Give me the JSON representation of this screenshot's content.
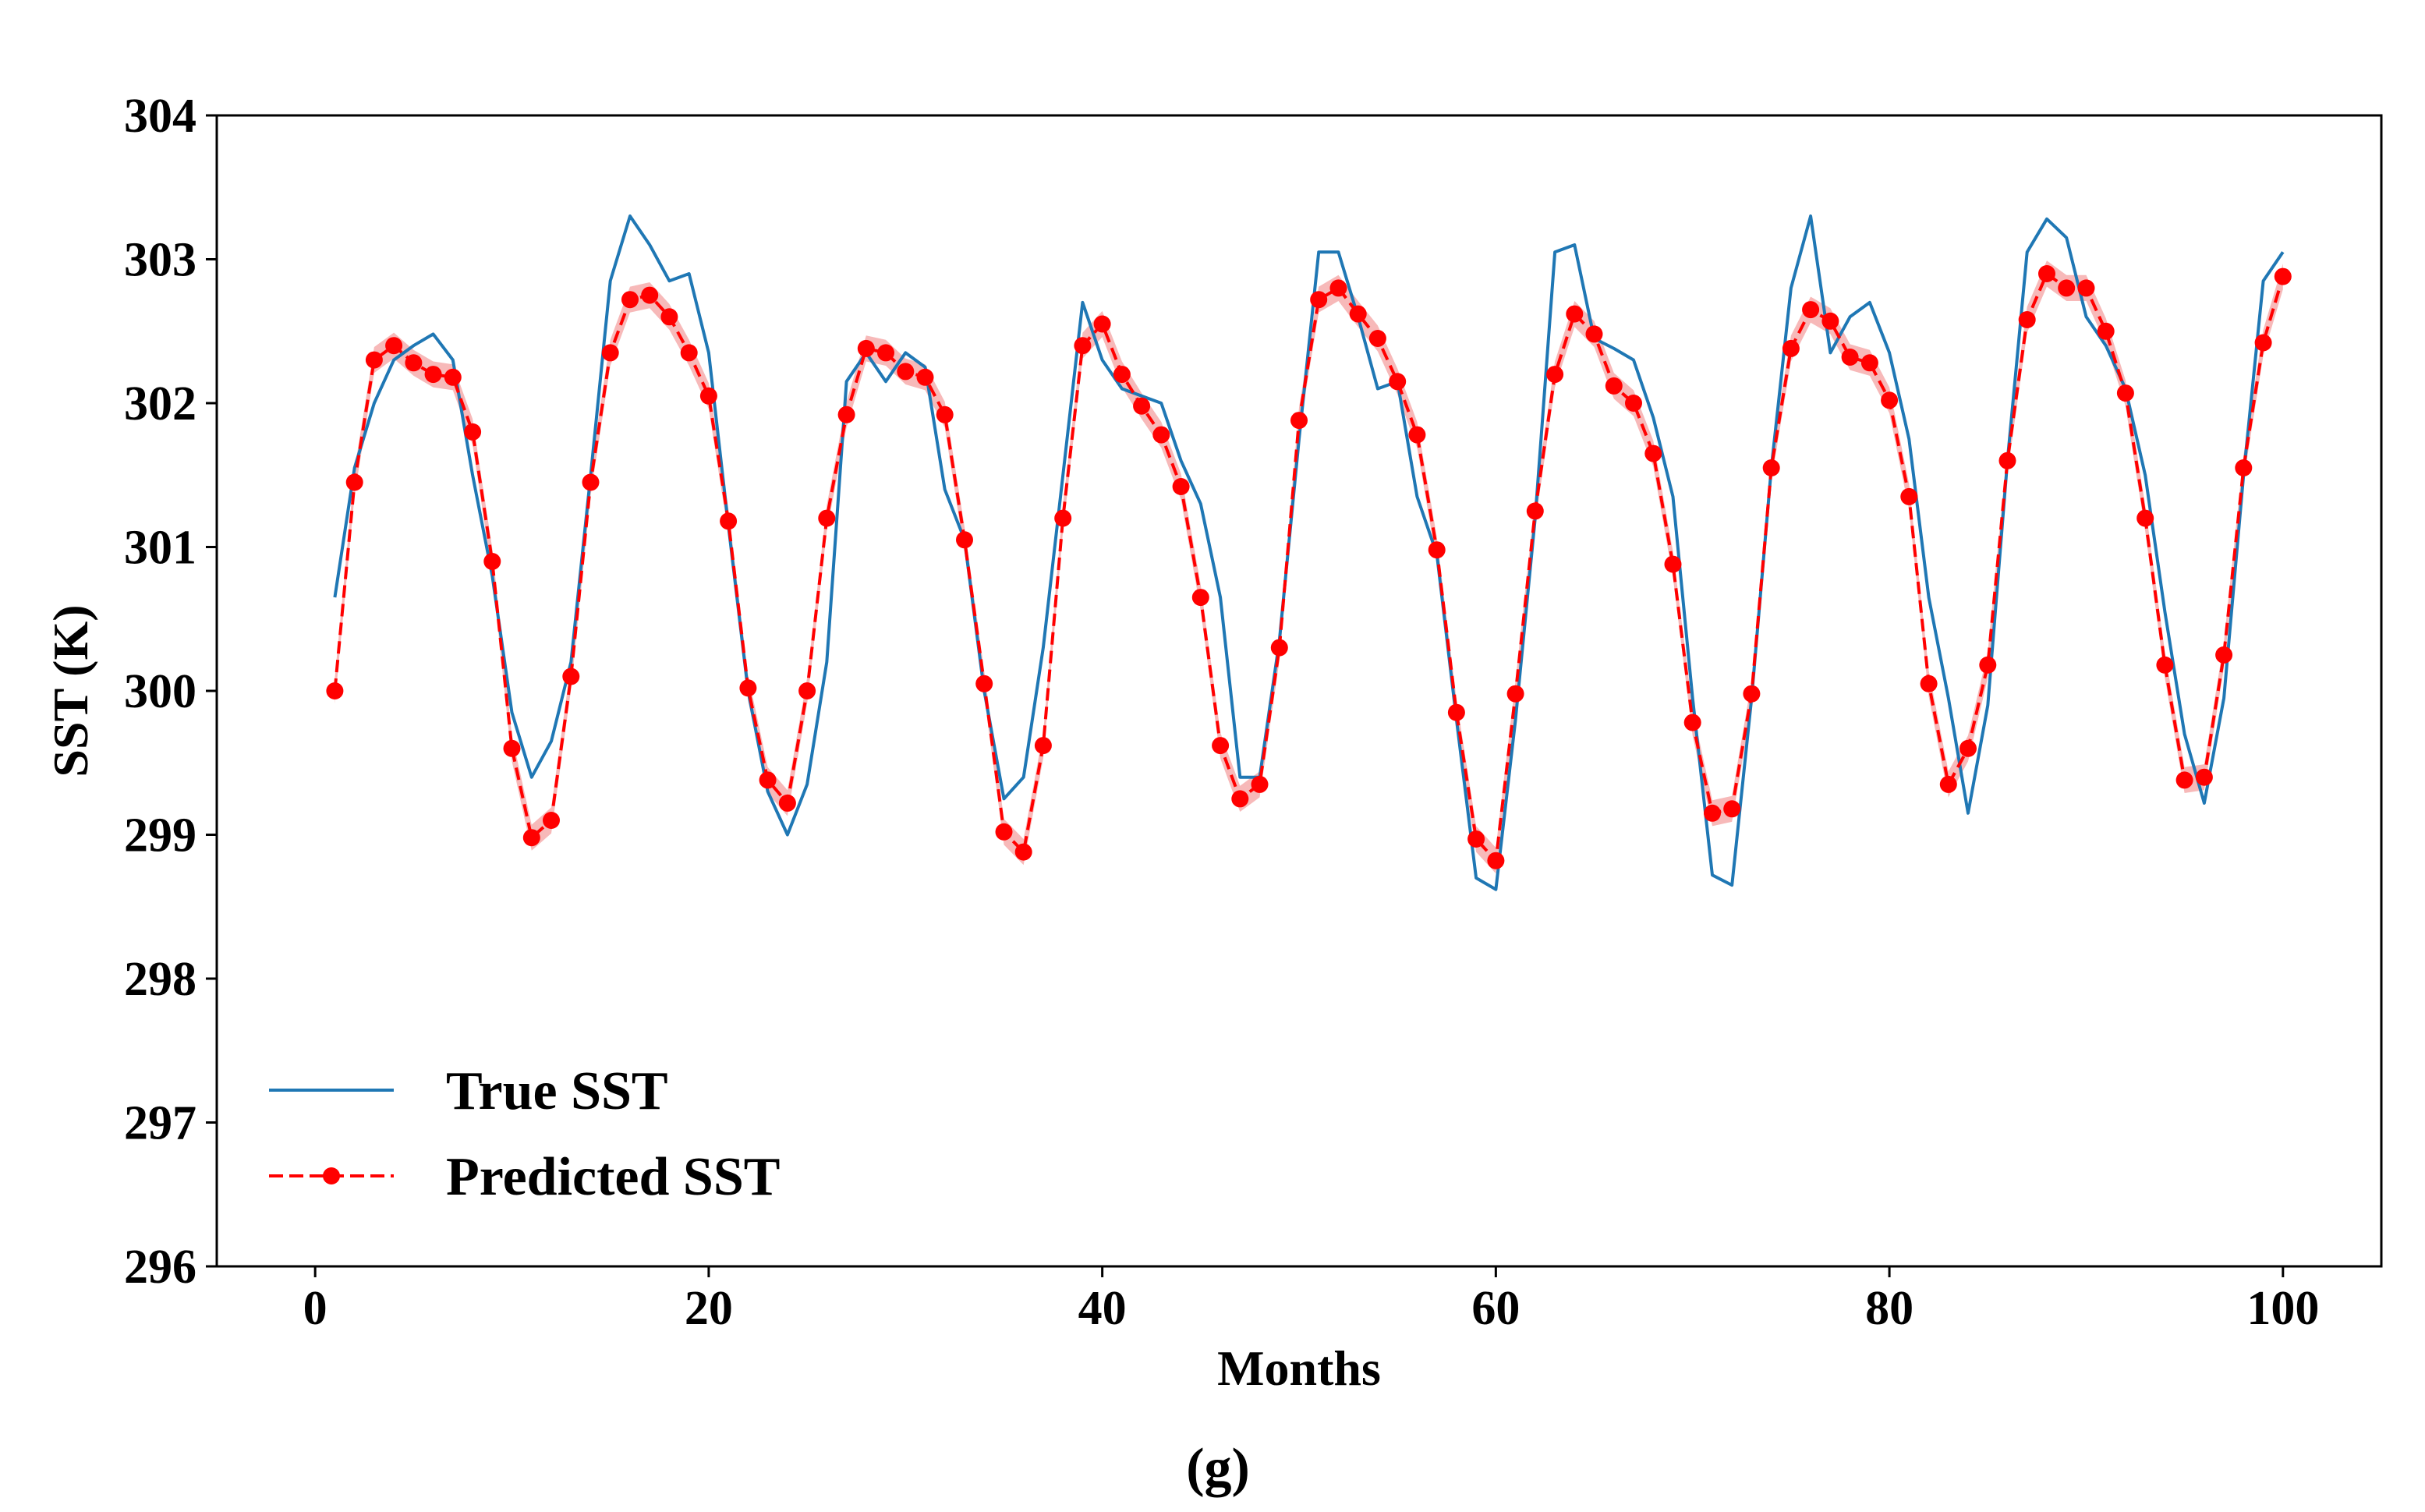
{
  "caption": "(g)",
  "colors": {
    "true_series": "#1f77b4",
    "predicted_series": "#ff0000",
    "band": "#f08080"
  },
  "chart_data": {
    "type": "line",
    "title": "",
    "xlabel": "Months",
    "ylabel": "SST (K)",
    "xlim": [
      -5,
      105
    ],
    "ylim": [
      296,
      304
    ],
    "x_ticks": [
      0,
      20,
      40,
      60,
      80,
      100
    ],
    "y_ticks": [
      296,
      297,
      298,
      299,
      300,
      301,
      302,
      303,
      304
    ],
    "legend_position": "lower-left",
    "band_halfwidth": 0.09,
    "series": [
      {
        "name": "True SST",
        "style": "solid",
        "x": [
          1,
          2,
          3,
          4,
          5,
          6,
          7,
          8,
          9,
          10,
          11,
          12,
          13,
          14,
          15,
          16,
          17,
          18,
          19,
          20,
          21,
          22,
          23,
          24,
          25,
          26,
          27,
          28,
          29,
          30,
          31,
          32,
          33,
          34,
          35,
          36,
          37,
          38,
          39,
          40,
          41,
          42,
          43,
          44,
          45,
          46,
          47,
          48,
          49,
          50,
          51,
          52,
          53,
          54,
          55,
          56,
          57,
          58,
          59,
          60,
          61,
          62,
          63,
          64,
          65,
          66,
          67,
          68,
          69,
          70,
          71,
          72,
          73,
          74,
          75,
          76,
          77,
          78,
          79,
          80,
          81,
          82,
          83,
          84,
          85,
          86,
          87,
          88,
          89,
          90,
          91,
          92,
          93,
          94,
          95,
          96,
          97,
          98,
          99,
          100
        ],
        "values": [
          300.65,
          301.55,
          302.0,
          302.3,
          302.4,
          302.48,
          302.3,
          301.5,
          300.8,
          299.85,
          299.4,
          299.65,
          300.2,
          301.5,
          302.85,
          303.3,
          303.1,
          302.85,
          302.9,
          302.35,
          301.15,
          300.0,
          299.3,
          299.0,
          299.35,
          300.2,
          302.15,
          302.35,
          302.15,
          302.35,
          302.25,
          301.4,
          301.05,
          300.0,
          299.25,
          299.4,
          300.3,
          301.5,
          302.7,
          302.3,
          302.1,
          302.05,
          302.0,
          301.6,
          301.3,
          300.65,
          299.4,
          299.4,
          300.35,
          301.75,
          303.05,
          303.05,
          302.6,
          302.1,
          302.15,
          301.35,
          300.95,
          299.8,
          298.7,
          298.62,
          299.8,
          301.2,
          303.05,
          303.1,
          302.45,
          302.38,
          302.3,
          301.9,
          301.35,
          299.95,
          298.72,
          298.65,
          299.95,
          301.55,
          302.8,
          303.3,
          302.35,
          302.6,
          302.7,
          302.35,
          301.75,
          300.65,
          299.95,
          299.15,
          299.9,
          301.6,
          303.05,
          303.28,
          303.15,
          302.6,
          302.4,
          302.1,
          301.5,
          300.55,
          299.7,
          299.22,
          299.95,
          301.5,
          302.85,
          303.05
        ]
      },
      {
        "name": "Predicted SST",
        "style": "dashed-markers",
        "x": [
          1,
          2,
          3,
          4,
          5,
          6,
          7,
          8,
          9,
          10,
          11,
          12,
          13,
          14,
          15,
          16,
          17,
          18,
          19,
          20,
          21,
          22,
          23,
          24,
          25,
          26,
          27,
          28,
          29,
          30,
          31,
          32,
          33,
          34,
          35,
          36,
          37,
          38,
          39,
          40,
          41,
          42,
          43,
          44,
          45,
          46,
          47,
          48,
          49,
          50,
          51,
          52,
          53,
          54,
          55,
          56,
          57,
          58,
          59,
          60,
          61,
          62,
          63,
          64,
          65,
          66,
          67,
          68,
          69,
          70,
          71,
          72,
          73,
          74,
          75,
          76,
          77,
          78,
          79,
          80,
          81,
          82,
          83,
          84,
          85,
          86,
          87,
          88,
          89,
          90,
          91,
          92,
          93,
          94,
          95,
          96,
          97,
          98,
          99,
          100
        ],
        "values": [
          300.0,
          301.45,
          302.3,
          302.4,
          302.28,
          302.2,
          302.18,
          301.8,
          300.9,
          299.6,
          298.98,
          299.1,
          300.1,
          301.45,
          302.35,
          302.72,
          302.75,
          302.6,
          302.35,
          302.05,
          301.18,
          300.02,
          299.38,
          299.22,
          300.0,
          301.2,
          301.92,
          302.38,
          302.35,
          302.22,
          302.18,
          301.92,
          301.05,
          300.05,
          299.02,
          298.88,
          299.62,
          301.2,
          302.4,
          302.55,
          302.2,
          301.98,
          301.78,
          301.42,
          300.65,
          299.62,
          299.25,
          299.35,
          300.3,
          301.88,
          302.72,
          302.8,
          302.62,
          302.45,
          302.15,
          301.78,
          300.98,
          299.85,
          298.97,
          298.82,
          299.98,
          301.25,
          302.2,
          302.62,
          302.48,
          302.12,
          302.0,
          301.65,
          300.88,
          299.78,
          299.15,
          299.18,
          299.98,
          301.55,
          302.38,
          302.65,
          302.57,
          302.32,
          302.28,
          302.02,
          301.35,
          300.05,
          299.35,
          299.6,
          300.18,
          301.6,
          302.58,
          302.9,
          302.8,
          302.8,
          302.5,
          302.07,
          301.2,
          300.18,
          299.38,
          299.4,
          300.25,
          301.55,
          302.42,
          302.88
        ]
      }
    ]
  }
}
